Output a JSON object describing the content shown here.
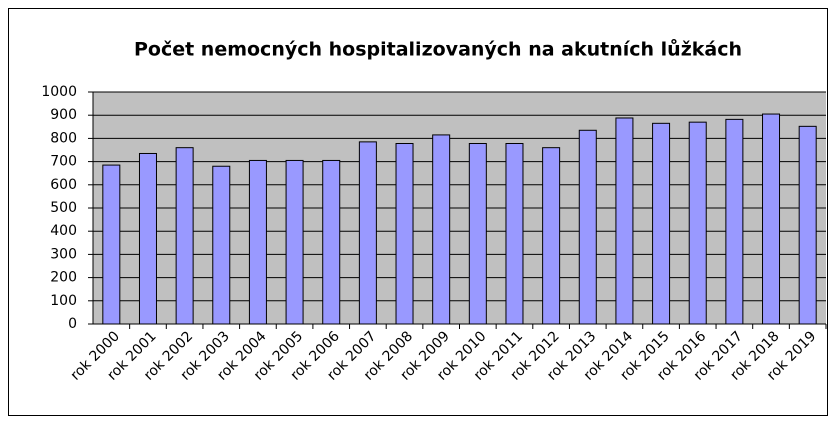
{
  "chart_data": {
    "type": "bar",
    "title": "Počet nemocných hospitalizovaných na akutních lůžkách",
    "categories": [
      "rok 2000",
      "rok 2001",
      "rok 2002",
      "rok 2003",
      "rok 2004",
      "rok 2005",
      "rok 2006",
      "rok 2007",
      "rok 2008",
      "rok 2009",
      "rok 2010",
      "rok 2011",
      "rok 2012",
      "rok 2013",
      "rok 2014",
      "rok 2015",
      "rok 2016",
      "rok 2017",
      "rok 2018",
      "rok 2019"
    ],
    "values": [
      685,
      735,
      760,
      680,
      705,
      705,
      705,
      785,
      778,
      815,
      778,
      778,
      760,
      835,
      888,
      865,
      870,
      882,
      905,
      852
    ],
    "color": "#9999ff",
    "ylim": [
      0,
      1000
    ],
    "yticks": [
      0,
      100,
      200,
      300,
      400,
      500,
      600,
      700,
      800,
      900,
      1000
    ],
    "grid": true
  }
}
